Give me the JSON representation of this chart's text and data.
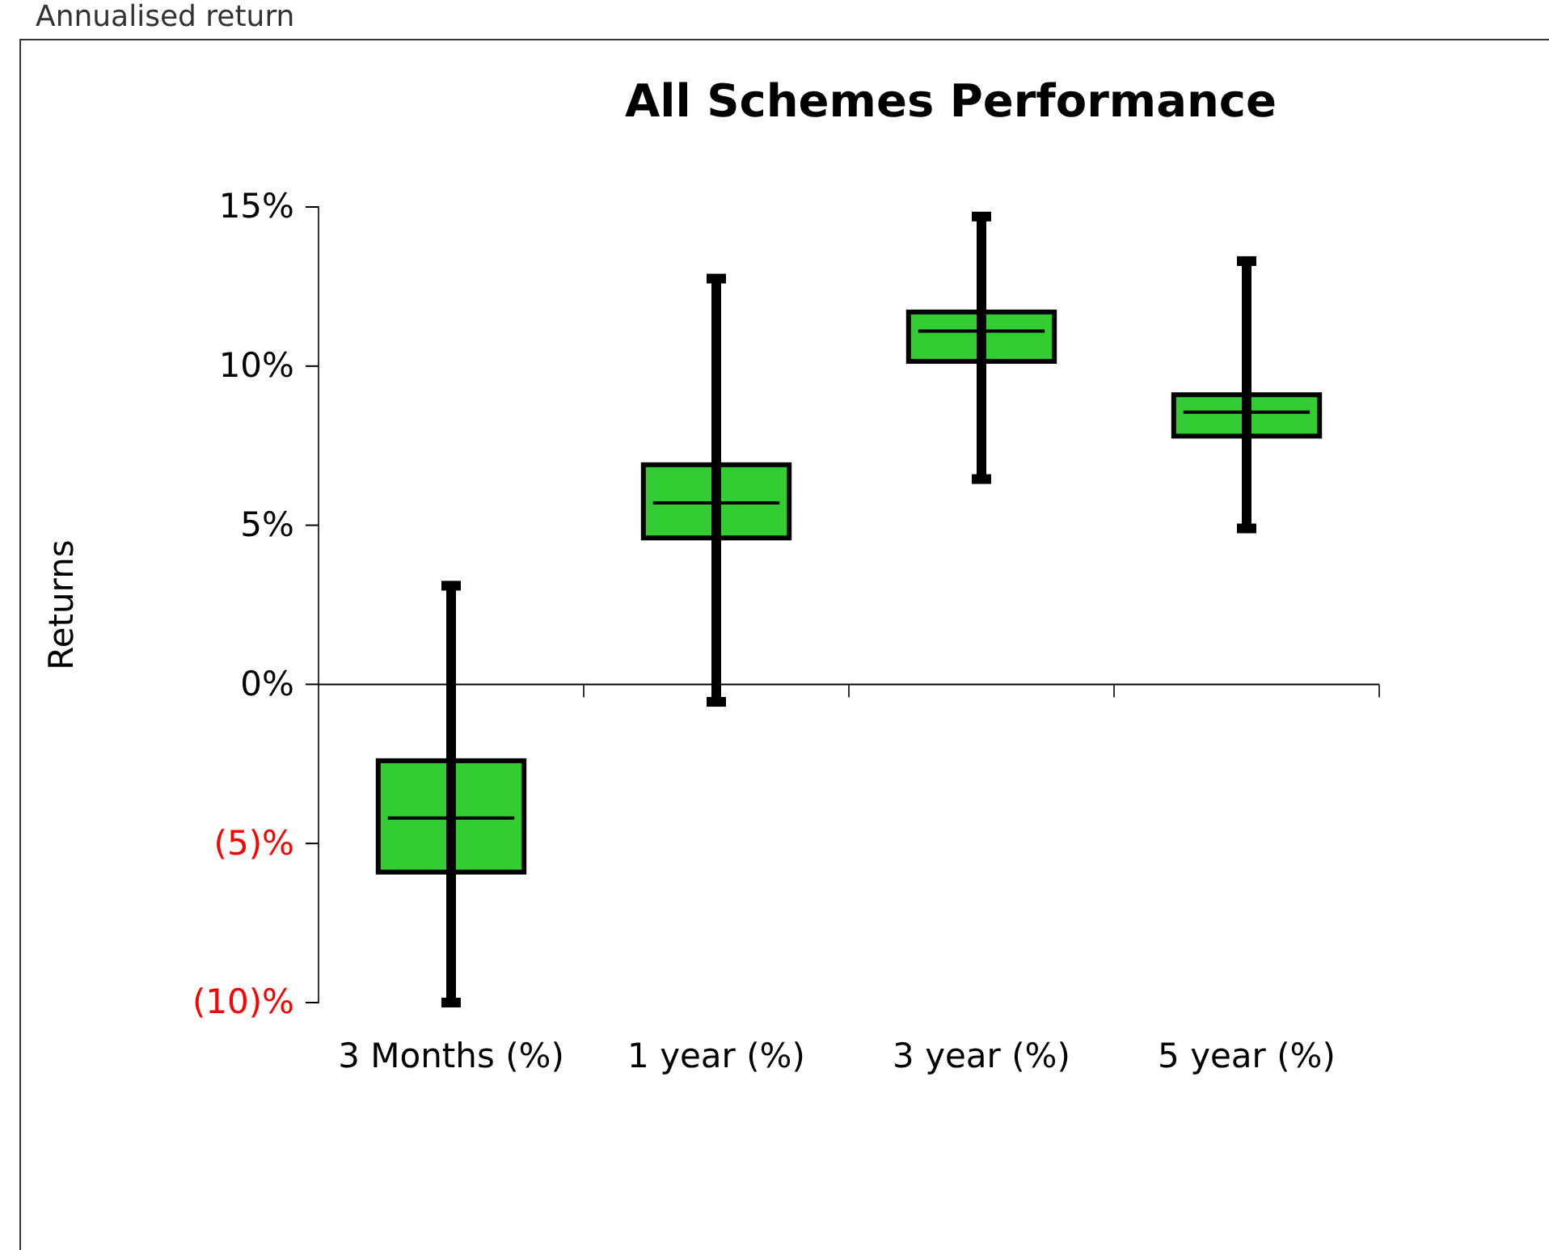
{
  "chart_data": {
    "type": "box",
    "title": "All Schemes Performance",
    "ylabel": "Returns",
    "annotations": [
      "Annualised return"
    ],
    "categories": [
      "3 Months (%)",
      "1 year (%)",
      "3 year (%)",
      "5 year (%)"
    ],
    "color": "#33cc33",
    "boxes": [
      {
        "low": -10.0,
        "q1": -5.9,
        "median": -4.2,
        "q3": -2.4,
        "high": 3.1
      },
      {
        "low": -0.55,
        "q1": 4.6,
        "median": 5.7,
        "q3": 6.9,
        "high": 12.75
      },
      {
        "low": 6.45,
        "q1": 10.15,
        "median": 11.1,
        "q3": 11.7,
        "high": 14.7
      },
      {
        "low": 4.9,
        "q1": 7.8,
        "median": 8.55,
        "q3": 9.1,
        "high": 13.3
      }
    ],
    "ylim": [
      -10,
      15
    ],
    "yticks": [
      {
        "value": -10,
        "label": "(10)%"
      },
      {
        "value": -5,
        "label": "(5)%"
      },
      {
        "value": 0,
        "label": "0%"
      },
      {
        "value": 5,
        "label": "5%"
      },
      {
        "value": 10,
        "label": "10%"
      },
      {
        "value": 15,
        "label": "15%"
      }
    ]
  }
}
